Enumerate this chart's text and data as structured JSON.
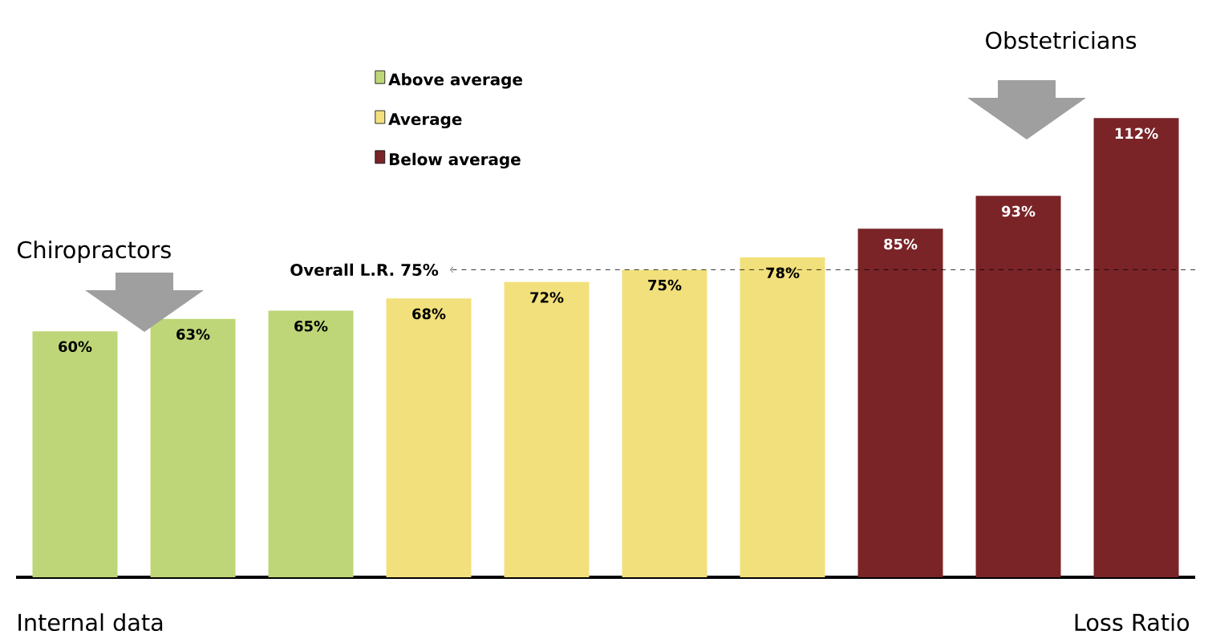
{
  "chart_data": {
    "type": "bar",
    "categories": [
      null,
      null,
      null,
      null,
      null,
      null,
      null,
      null,
      null,
      null
    ],
    "series": [
      {
        "name": "Above average",
        "color": "#bed677",
        "values": [
          60,
          63,
          65,
          null,
          null,
          null,
          null,
          null,
          null,
          null
        ],
        "value_labels": [
          "60%",
          "63%",
          "65%",
          null,
          null,
          null,
          null,
          null,
          null,
          null
        ]
      },
      {
        "name": "Average",
        "color": "#f2e07c",
        "values": [
          null,
          null,
          null,
          68,
          72,
          75,
          78,
          null,
          null,
          null
        ],
        "value_labels": [
          null,
          null,
          null,
          "68%",
          "72%",
          "75%",
          "78%",
          null,
          null,
          null
        ]
      },
      {
        "name": "Below average",
        "color": "#7a2428",
        "values": [
          null,
          null,
          null,
          null,
          null,
          null,
          null,
          85,
          93,
          112
        ],
        "value_labels": [
          null,
          null,
          null,
          null,
          null,
          null,
          null,
          "85%",
          "93%",
          "112%"
        ]
      }
    ],
    "ref_lines": [
      {
        "axis": "y",
        "value": 75,
        "label": "Overall L.R. 75%",
        "line_style": "dashed"
      }
    ],
    "annotations": [
      "Chiropractors",
      "Obstetricians",
      "Internal data",
      "Loss Ratio"
    ],
    "legend": "top",
    "stacked": true
  }
}
